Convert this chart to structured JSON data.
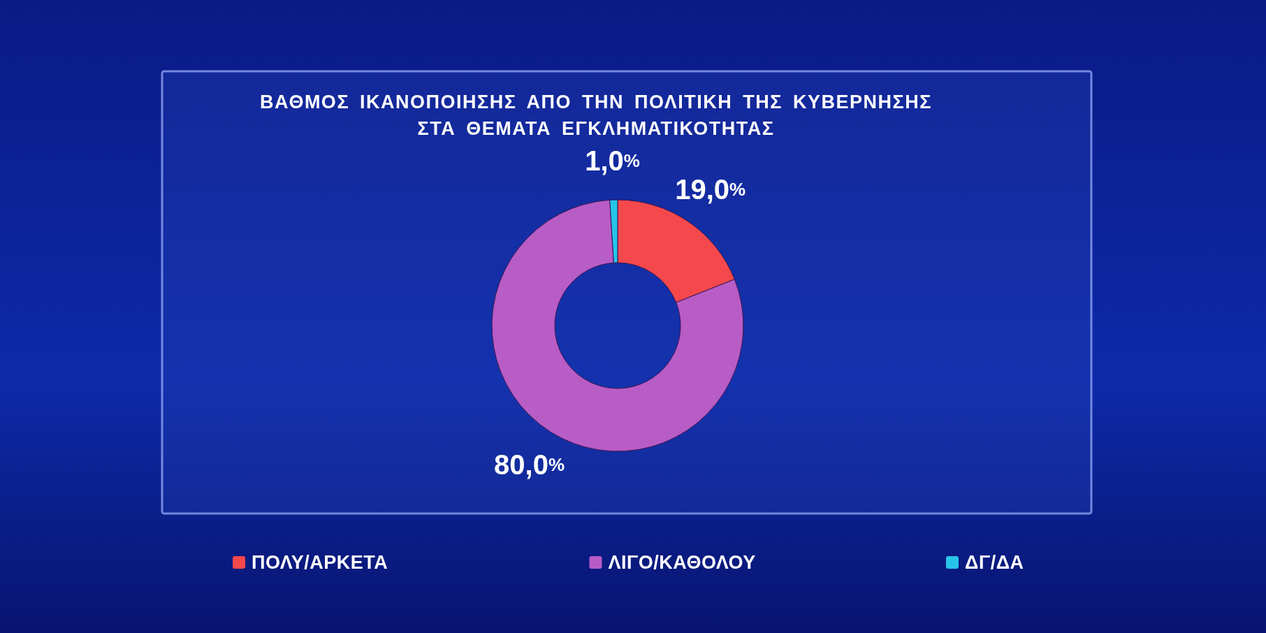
{
  "chart_data": {
    "type": "donut",
    "title": "ΒΑΘΜΟΣ ΙΚΑΝΟΠΟΙΗΣΗΣ ΑΠΟ ΤΗΝ ΠΟΛΙΤΙΚΗ ΤΗΣ ΚΥΒΕΡΝΗΣΗΣ ΣΤΑ ΘΕΜΑΤΑ ΕΓΚΛΗΜΑΤΙΚΟΤΗΤΑΣ",
    "categories": [
      "ΠΟΛΥ/ΑΡΚΕΤΑ",
      "ΛΙΓΟ/ΚΑΘΟΛΟΥ",
      "ΔΓ/ΔΑ"
    ],
    "values": [
      19.0,
      80.0,
      1.0
    ],
    "colors": [
      "#f4484c",
      "#b85cc6",
      "#27c4ea"
    ],
    "value_labels": [
      "19,0%",
      "80,0%",
      "1,0%"
    ],
    "legend": "bottom"
  }
}
